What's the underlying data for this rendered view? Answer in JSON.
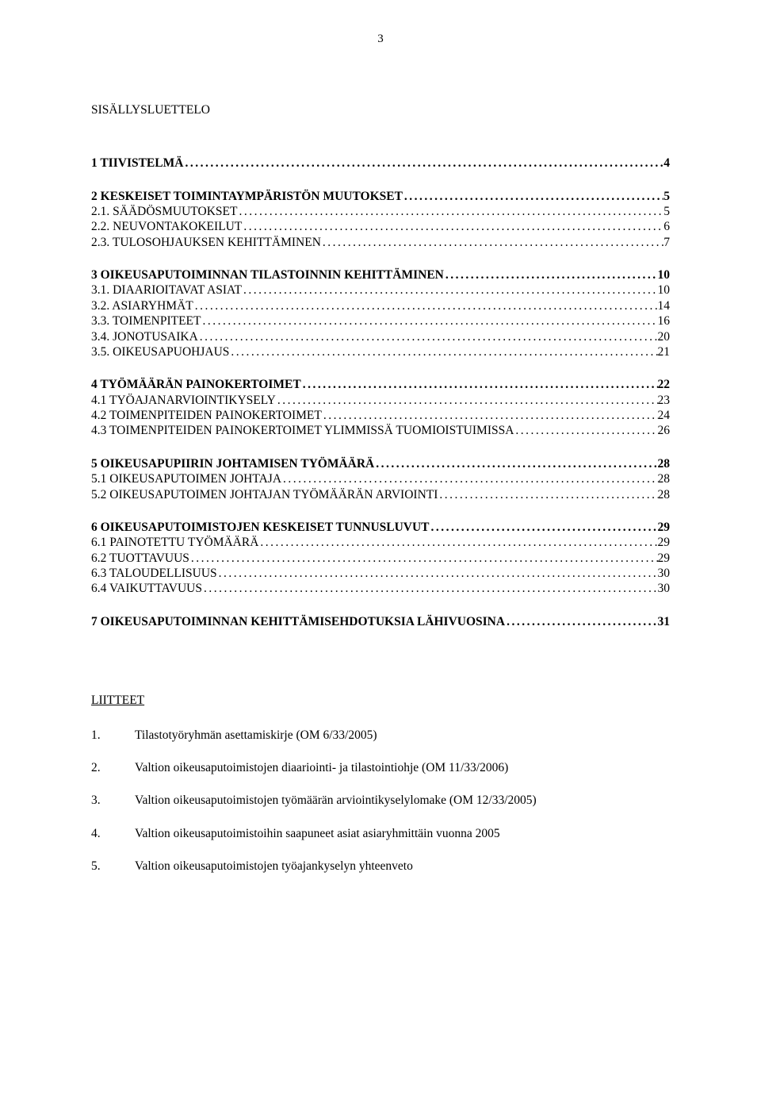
{
  "page_number": "3",
  "title": "SISÄLLYSLUETTELO",
  "toc": [
    {
      "bold": true,
      "label": "1 TIIVISTELMÄ",
      "page": "4",
      "space_before": false
    },
    {
      "bold": true,
      "label": "2 KESKEISET TOIMINTAYMPÄRISTÖN MUUTOKSET",
      "page": "5",
      "space_before": true
    },
    {
      "bold": false,
      "label": "2.1. SÄÄDÖSMUUTOKSET",
      "page": "5",
      "space_before": false
    },
    {
      "bold": false,
      "label": "2.2. NEUVONTAKOKEILUT",
      "page": "6",
      "space_before": false
    },
    {
      "bold": false,
      "label": "2.3. TULOSOHJAUKSEN KEHITTÄMINEN",
      "page": "7",
      "space_before": false
    },
    {
      "bold": true,
      "label": "3 OIKEUSAPUTOIMINNAN TILASTOINNIN KEHITTÄMINEN",
      "page": "10",
      "space_before": true
    },
    {
      "bold": false,
      "label": "3.1. DIAARIOITAVAT ASIAT",
      "page": "10",
      "space_before": false
    },
    {
      "bold": false,
      "label": "3.2. ASIARYHMÄT",
      "page": "14",
      "space_before": false
    },
    {
      "bold": false,
      "label": "3.3. TOIMENPITEET",
      "page": "16",
      "space_before": false
    },
    {
      "bold": false,
      "label": "3.4. JONOTUSAIKA",
      "page": "20",
      "space_before": false
    },
    {
      "bold": false,
      "label": "3.5. OIKEUSAPUOHJAUS",
      "page": "21",
      "space_before": false
    },
    {
      "bold": true,
      "label": "4 TYÖMÄÄRÄN PAINOKERTOIMET",
      "page": "22",
      "space_before": true
    },
    {
      "bold": false,
      "label": "4.1 TYÖAJANARVIOINTIKYSELY",
      "page": "23",
      "space_before": false
    },
    {
      "bold": false,
      "label": "4.2 TOIMENPITEIDEN PAINOKERTOIMET",
      "page": "24",
      "space_before": false
    },
    {
      "bold": false,
      "label": "4.3 TOIMENPITEIDEN PAINOKERTOIMET YLIMMISSÄ TUOMIOISTUIMISSA",
      "page": "26",
      "space_before": false
    },
    {
      "bold": true,
      "label": "5 OIKEUSAPUPIIRIN JOHTAMISEN TYÖMÄÄRÄ",
      "page": "28",
      "space_before": true
    },
    {
      "bold": false,
      "label": "5.1 OIKEUSAPUTOIMEN JOHTAJA",
      "page": "28",
      "space_before": false
    },
    {
      "bold": false,
      "label": "5.2 OIKEUSAPUTOIMEN JOHTAJAN TYÖMÄÄRÄN ARVIOINTI",
      "page": "28",
      "space_before": false
    },
    {
      "bold": true,
      "label": "6 OIKEUSAPUTOIMISTOJEN KESKEISET TUNNUSLUVUT",
      "page": "29",
      "space_before": true
    },
    {
      "bold": false,
      "label": "6.1 PAINOTETTU TYÖMÄÄRÄ",
      "page": "29",
      "space_before": false
    },
    {
      "bold": false,
      "label": "6.2 TUOTTAVUUS",
      "page": "29",
      "space_before": false
    },
    {
      "bold": false,
      "label": "6.3 TALOUDELLISUUS",
      "page": "30",
      "space_before": false
    },
    {
      "bold": false,
      "label": "6.4 VAIKUTTAVUUS",
      "page": "30",
      "space_before": false
    },
    {
      "bold": true,
      "label": "7 OIKEUSAPUTOIMINNAN KEHITTÄMISEHDOTUKSIA LÄHIVUOSINA",
      "page": "31",
      "space_before": true
    }
  ],
  "attachments_title": "LIITTEET",
  "attachments": [
    {
      "num": "1.",
      "text": "Tilastotyöryhmän asettamiskirje (OM 6/33/2005)"
    },
    {
      "num": "2.",
      "text": "Valtion oikeusaputoimistojen diaariointi- ja tilastointiohje (OM 11/33/2006)"
    },
    {
      "num": "3.",
      "text": "Valtion oikeusaputoimistojen työmäärän arviointikyselylomake (OM 12/33/2005)"
    },
    {
      "num": "4.",
      "text": "Valtion oikeusaputoimistoihin saapuneet asiat asiaryhmittäin vuonna 2005"
    },
    {
      "num": "5.",
      "text": "Valtion oikeusaputoimistojen työajankyselyn yhteenveto"
    }
  ]
}
